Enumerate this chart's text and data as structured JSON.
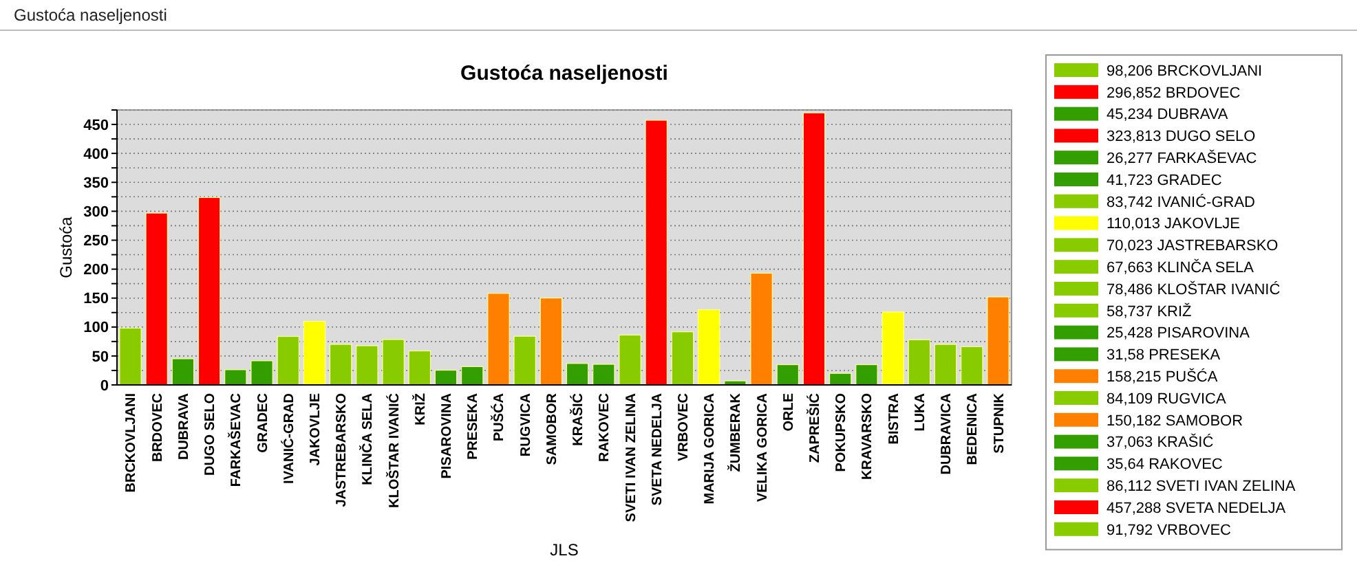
{
  "chart_data": {
    "type": "bar",
    "title": "Gustoća naseljenosti",
    "annotations": [
      "Gustoća naseljenosti"
    ],
    "xlabel": "JLS",
    "ylabel": "Gustoća",
    "stacked": true,
    "categories": [
      "BRCKOVLJANI",
      "BRDOVEC",
      "DUBRAVA",
      "DUGO SELO",
      "FARKAŠEVAC",
      "GRADEC",
      "IVANIĆ-GRAD",
      "JAKOVLJE",
      "JASTREBARSKO",
      "KLINČA SELA",
      "KLOŠTAR IVANIĆ",
      "KRIŽ",
      "PISAROVINA",
      "PRESEKA",
      "PUŠĆA",
      "RUGVICA",
      "SAMOBOR",
      "KRAŠIĆ",
      "RAKOVEC",
      "SVETI IVAN ZELINA",
      "SVETA NEDELJA",
      "VRBOVEC",
      "MARIJA GORICA",
      "ŽUMBERAK",
      "VELIKA GORICA",
      "ORLE",
      "ZAPREŠIĆ",
      "POKUPSKO",
      "KRAVARSKO",
      "BISTRA",
      "LUKA",
      "DUBRAVICA",
      "BEDENICA",
      "STUPNIK"
    ],
    "series": [
      {
        "name": "98,206 BRCKOVLJANI",
        "color": "#88cc00",
        "values": [
          98.206,
          null,
          null,
          null,
          null,
          null,
          null,
          null,
          null,
          null,
          null,
          null,
          null,
          null,
          null,
          null,
          null,
          null,
          null,
          null,
          null,
          null,
          null,
          null,
          null,
          null,
          null,
          null,
          null,
          null,
          null,
          null,
          null,
          null
        ]
      },
      {
        "name": "296,852 BRDOVEC",
        "color": "#ff0000",
        "values": [
          null,
          296.852,
          null,
          null,
          null,
          null,
          null,
          null,
          null,
          null,
          null,
          null,
          null,
          null,
          null,
          null,
          null,
          null,
          null,
          null,
          null,
          null,
          null,
          null,
          null,
          null,
          null,
          null,
          null,
          null,
          null,
          null,
          null,
          null
        ]
      },
      {
        "name": "45,234 DUBRAVA",
        "color": "#339e00",
        "values": [
          null,
          null,
          45.234,
          null,
          null,
          null,
          null,
          null,
          null,
          null,
          null,
          null,
          null,
          null,
          null,
          null,
          null,
          null,
          null,
          null,
          null,
          null,
          null,
          null,
          null,
          null,
          null,
          null,
          null,
          null,
          null,
          null,
          null,
          null
        ]
      },
      {
        "name": "323,813 DUGO SELO",
        "color": "#ff0000",
        "values": [
          null,
          null,
          null,
          323.813,
          null,
          null,
          null,
          null,
          null,
          null,
          null,
          null,
          null,
          null,
          null,
          null,
          null,
          null,
          null,
          null,
          null,
          null,
          null,
          null,
          null,
          null,
          null,
          null,
          null,
          null,
          null,
          null,
          null,
          null
        ]
      },
      {
        "name": "26,277 FARKAŠEVAC",
        "color": "#339e00",
        "values": [
          null,
          null,
          null,
          null,
          26.277,
          null,
          null,
          null,
          null,
          null,
          null,
          null,
          null,
          null,
          null,
          null,
          null,
          null,
          null,
          null,
          null,
          null,
          null,
          null,
          null,
          null,
          null,
          null,
          null,
          null,
          null,
          null,
          null,
          null
        ]
      },
      {
        "name": "41,723 GRADEC",
        "color": "#339e00",
        "values": [
          null,
          null,
          null,
          null,
          null,
          41.723,
          null,
          null,
          null,
          null,
          null,
          null,
          null,
          null,
          null,
          null,
          null,
          null,
          null,
          null,
          null,
          null,
          null,
          null,
          null,
          null,
          null,
          null,
          null,
          null,
          null,
          null,
          null,
          null
        ]
      },
      {
        "name": "83,742 IVANIĆ-GRAD",
        "color": "#88cc00",
        "values": [
          null,
          null,
          null,
          null,
          null,
          null,
          83.742,
          null,
          null,
          null,
          null,
          null,
          null,
          null,
          null,
          null,
          null,
          null,
          null,
          null,
          null,
          null,
          null,
          null,
          null,
          null,
          null,
          null,
          null,
          null,
          null,
          null,
          null,
          null
        ]
      },
      {
        "name": "110,013 JAKOVLJE",
        "color": "#ffff00",
        "values": [
          null,
          null,
          null,
          null,
          null,
          null,
          null,
          110.013,
          null,
          null,
          null,
          null,
          null,
          null,
          null,
          null,
          null,
          null,
          null,
          null,
          null,
          null,
          null,
          null,
          null,
          null,
          null,
          null,
          null,
          null,
          null,
          null,
          null,
          null
        ]
      },
      {
        "name": "70,023 JASTREBARSKO",
        "color": "#88cc00",
        "values": [
          null,
          null,
          null,
          null,
          null,
          null,
          null,
          null,
          70.023,
          null,
          null,
          null,
          null,
          null,
          null,
          null,
          null,
          null,
          null,
          null,
          null,
          null,
          null,
          null,
          null,
          null,
          null,
          null,
          null,
          null,
          null,
          null,
          null,
          null
        ]
      },
      {
        "name": "67,663 KLINČA SELA",
        "color": "#88cc00",
        "values": [
          null,
          null,
          null,
          null,
          null,
          null,
          null,
          null,
          null,
          67.663,
          null,
          null,
          null,
          null,
          null,
          null,
          null,
          null,
          null,
          null,
          null,
          null,
          null,
          null,
          null,
          null,
          null,
          null,
          null,
          null,
          null,
          null,
          null,
          null
        ]
      },
      {
        "name": "78,486 KLOŠTAR IVANIĆ",
        "color": "#88cc00",
        "values": [
          null,
          null,
          null,
          null,
          null,
          null,
          null,
          null,
          null,
          null,
          78.486,
          null,
          null,
          null,
          null,
          null,
          null,
          null,
          null,
          null,
          null,
          null,
          null,
          null,
          null,
          null,
          null,
          null,
          null,
          null,
          null,
          null,
          null,
          null
        ]
      },
      {
        "name": "58,737 KRIŽ",
        "color": "#88cc00",
        "values": [
          null,
          null,
          null,
          null,
          null,
          null,
          null,
          null,
          null,
          null,
          null,
          58.737,
          null,
          null,
          null,
          null,
          null,
          null,
          null,
          null,
          null,
          null,
          null,
          null,
          null,
          null,
          null,
          null,
          null,
          null,
          null,
          null,
          null,
          null
        ]
      },
      {
        "name": "25,428 PISAROVINA",
        "color": "#339e00",
        "values": [
          null,
          null,
          null,
          null,
          null,
          null,
          null,
          null,
          null,
          null,
          null,
          null,
          25.428,
          null,
          null,
          null,
          null,
          null,
          null,
          null,
          null,
          null,
          null,
          null,
          null,
          null,
          null,
          null,
          null,
          null,
          null,
          null,
          null,
          null
        ]
      },
      {
        "name": "31,58 PRESEKA",
        "color": "#339e00",
        "values": [
          null,
          null,
          null,
          null,
          null,
          null,
          null,
          null,
          null,
          null,
          null,
          null,
          null,
          31.58,
          null,
          null,
          null,
          null,
          null,
          null,
          null,
          null,
          null,
          null,
          null,
          null,
          null,
          null,
          null,
          null,
          null,
          null,
          null,
          null
        ]
      },
      {
        "name": "158,215 PUŠĆA",
        "color": "#ff8000",
        "values": [
          null,
          null,
          null,
          null,
          null,
          null,
          null,
          null,
          null,
          null,
          null,
          null,
          null,
          null,
          158.215,
          null,
          null,
          null,
          null,
          null,
          null,
          null,
          null,
          null,
          null,
          null,
          null,
          null,
          null,
          null,
          null,
          null,
          null,
          null
        ]
      },
      {
        "name": "84,109 RUGVICA",
        "color": "#88cc00",
        "values": [
          null,
          null,
          null,
          null,
          null,
          null,
          null,
          null,
          null,
          null,
          null,
          null,
          null,
          null,
          null,
          84.109,
          null,
          null,
          null,
          null,
          null,
          null,
          null,
          null,
          null,
          null,
          null,
          null,
          null,
          null,
          null,
          null,
          null,
          null
        ]
      },
      {
        "name": "150,182 SAMOBOR",
        "color": "#ff8000",
        "values": [
          null,
          null,
          null,
          null,
          null,
          null,
          null,
          null,
          null,
          null,
          null,
          null,
          null,
          null,
          null,
          null,
          150.182,
          null,
          null,
          null,
          null,
          null,
          null,
          null,
          null,
          null,
          null,
          null,
          null,
          null,
          null,
          null,
          null,
          null
        ]
      },
      {
        "name": "37,063 KRAŠIĆ",
        "color": "#339e00",
        "values": [
          null,
          null,
          null,
          null,
          null,
          null,
          null,
          null,
          null,
          null,
          null,
          null,
          null,
          null,
          null,
          null,
          null,
          37.063,
          null,
          null,
          null,
          null,
          null,
          null,
          null,
          null,
          null,
          null,
          null,
          null,
          null,
          null,
          null,
          null
        ]
      },
      {
        "name": "35,64 RAKOVEC",
        "color": "#339e00",
        "values": [
          null,
          null,
          null,
          null,
          null,
          null,
          null,
          null,
          null,
          null,
          null,
          null,
          null,
          null,
          null,
          null,
          null,
          null,
          35.64,
          null,
          null,
          null,
          null,
          null,
          null,
          null,
          null,
          null,
          null,
          null,
          null,
          null,
          null,
          null
        ]
      },
      {
        "name": "86,112 SVETI IVAN ZELINA",
        "color": "#88cc00",
        "values": [
          null,
          null,
          null,
          null,
          null,
          null,
          null,
          null,
          null,
          null,
          null,
          null,
          null,
          null,
          null,
          null,
          null,
          null,
          null,
          86.112,
          null,
          null,
          null,
          null,
          null,
          null,
          null,
          null,
          null,
          null,
          null,
          null,
          null,
          null
        ]
      },
      {
        "name": "457,288 SVETA NEDELJA",
        "color": "#ff0000",
        "values": [
          null,
          null,
          null,
          null,
          null,
          null,
          null,
          null,
          null,
          null,
          null,
          null,
          null,
          null,
          null,
          null,
          null,
          null,
          null,
          null,
          457.288,
          null,
          null,
          null,
          null,
          null,
          null,
          null,
          null,
          null,
          null,
          null,
          null,
          null
        ]
      },
      {
        "name": "91,792 VRBOVEC",
        "color": "#88cc00",
        "values": [
          null,
          null,
          null,
          null,
          null,
          null,
          null,
          null,
          null,
          null,
          null,
          null,
          null,
          null,
          null,
          null,
          null,
          null,
          null,
          null,
          null,
          91.792,
          null,
          null,
          null,
          null,
          null,
          null,
          null,
          null,
          null,
          null,
          null,
          null
        ]
      },
      {
        "color": "#ffff00",
        "values": [
          null,
          null,
          null,
          null,
          null,
          null,
          null,
          null,
          null,
          null,
          null,
          null,
          null,
          null,
          null,
          null,
          null,
          null,
          null,
          null,
          null,
          null,
          130,
          null,
          null,
          null,
          null,
          null,
          null,
          null,
          null,
          null,
          null,
          null
        ]
      },
      {
        "color": "#339e00",
        "values": [
          null,
          null,
          null,
          null,
          null,
          null,
          null,
          null,
          null,
          null,
          null,
          null,
          null,
          null,
          null,
          null,
          null,
          null,
          null,
          null,
          null,
          null,
          null,
          7,
          null,
          null,
          null,
          null,
          null,
          null,
          null,
          null,
          null,
          null
        ]
      },
      {
        "color": "#ff8000",
        "values": [
          null,
          null,
          null,
          null,
          null,
          null,
          null,
          null,
          null,
          null,
          null,
          null,
          null,
          null,
          null,
          null,
          null,
          null,
          null,
          null,
          null,
          null,
          null,
          null,
          193,
          null,
          null,
          null,
          null,
          null,
          null,
          null,
          null,
          null
        ]
      },
      {
        "color": "#339e00",
        "values": [
          null,
          null,
          null,
          null,
          null,
          null,
          null,
          null,
          null,
          null,
          null,
          null,
          null,
          null,
          null,
          null,
          null,
          null,
          null,
          null,
          null,
          null,
          null,
          null,
          null,
          35,
          null,
          null,
          null,
          null,
          null,
          null,
          null,
          null
        ]
      },
      {
        "color": "#ff0000",
        "values": [
          null,
          null,
          null,
          null,
          null,
          null,
          null,
          null,
          null,
          null,
          null,
          null,
          null,
          null,
          null,
          null,
          null,
          null,
          null,
          null,
          null,
          null,
          null,
          null,
          null,
          null,
          470,
          null,
          null,
          null,
          null,
          null,
          null,
          null
        ]
      },
      {
        "color": "#339e00",
        "values": [
          null,
          null,
          null,
          null,
          null,
          null,
          null,
          null,
          null,
          null,
          null,
          null,
          null,
          null,
          null,
          null,
          null,
          null,
          null,
          null,
          null,
          null,
          null,
          null,
          null,
          null,
          null,
          20,
          null,
          null,
          null,
          null,
          null,
          null
        ]
      },
      {
        "color": "#339e00",
        "values": [
          null,
          null,
          null,
          null,
          null,
          null,
          null,
          null,
          null,
          null,
          null,
          null,
          null,
          null,
          null,
          null,
          null,
          null,
          null,
          null,
          null,
          null,
          null,
          null,
          null,
          null,
          null,
          null,
          35,
          null,
          null,
          null,
          null,
          null
        ]
      },
      {
        "color": "#ffff00",
        "values": [
          null,
          null,
          null,
          null,
          null,
          null,
          null,
          null,
          null,
          null,
          null,
          null,
          null,
          null,
          null,
          null,
          null,
          null,
          null,
          null,
          null,
          null,
          null,
          null,
          null,
          null,
          null,
          null,
          null,
          126,
          null,
          null,
          null,
          null
        ]
      },
      {
        "color": "#88cc00",
        "values": [
          null,
          null,
          null,
          null,
          null,
          null,
          null,
          null,
          null,
          null,
          null,
          null,
          null,
          null,
          null,
          null,
          null,
          null,
          null,
          null,
          null,
          null,
          null,
          null,
          null,
          null,
          null,
          null,
          null,
          null,
          78,
          null,
          null,
          null
        ]
      },
      {
        "color": "#88cc00",
        "values": [
          null,
          null,
          null,
          null,
          null,
          null,
          null,
          null,
          null,
          null,
          null,
          null,
          null,
          null,
          null,
          null,
          null,
          null,
          null,
          null,
          null,
          null,
          null,
          null,
          null,
          null,
          null,
          null,
          null,
          null,
          null,
          70,
          null,
          null
        ]
      },
      {
        "color": "#88cc00",
        "values": [
          null,
          null,
          null,
          null,
          null,
          null,
          null,
          null,
          null,
          null,
          null,
          null,
          null,
          null,
          null,
          null,
          null,
          null,
          null,
          null,
          null,
          null,
          null,
          null,
          null,
          null,
          null,
          null,
          null,
          null,
          null,
          null,
          66,
          null
        ]
      },
      {
        "color": "#ff8000",
        "values": [
          null,
          null,
          null,
          null,
          null,
          null,
          null,
          null,
          null,
          null,
          null,
          null,
          null,
          null,
          null,
          null,
          null,
          null,
          null,
          null,
          null,
          null,
          null,
          null,
          null,
          null,
          null,
          null,
          null,
          null,
          null,
          null,
          null,
          152
        ]
      }
    ],
    "ylim": [
      0,
      475
    ],
    "yticks": [
      0,
      {
        "value": 25,
        "label": null
      },
      50,
      {
        "value": 75,
        "label": null
      },
      100,
      {
        "value": 125,
        "label": null
      },
      150,
      {
        "value": 175,
        "label": null
      },
      200,
      {
        "value": 225,
        "label": null
      },
      250,
      {
        "value": 275,
        "label": null
      },
      300,
      {
        "value": 325,
        "label": null
      },
      350,
      {
        "value": 375,
        "label": null
      },
      400,
      {
        "value": 425,
        "label": null
      },
      450,
      {
        "value": 475,
        "label": null
      }
    ],
    "grid": "y",
    "legend": "right"
  }
}
